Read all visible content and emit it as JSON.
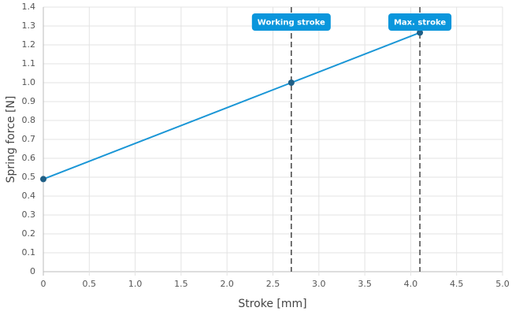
{
  "chart_data": {
    "type": "line",
    "x_label": "Stroke [mm]",
    "y_label": "Spring force [N]",
    "x": [
      0,
      2.7,
      4.1
    ],
    "series": [
      {
        "color": "#1a96d6",
        "point_color": "#1f5f86",
        "values": [
          0.49,
          1.0,
          1.265
        ]
      }
    ],
    "xlim": [
      0,
      5
    ],
    "xticks": [
      0,
      0.5,
      {
        "value": 1,
        "label": "1.0"
      },
      1.5,
      {
        "value": 2,
        "label": "2.0"
      },
      2.5,
      {
        "value": 3,
        "label": "3.0"
      },
      3.5,
      {
        "value": 4,
        "label": "4.0"
      },
      4.5,
      {
        "value": 5,
        "label": "5.0"
      }
    ],
    "ylim": [
      0,
      1.4
    ],
    "yticks": [
      0,
      0.1,
      0.2,
      0.3,
      0.4,
      0.5,
      0.6,
      0.7,
      0.8,
      0.9,
      {
        "value": 1,
        "label": "1.0"
      },
      1.1,
      1.2,
      1.3,
      1.4
    ],
    "grid": true,
    "annotations": [
      {
        "x": 2.7,
        "label": "Working stroke"
      },
      {
        "x": 4.1,
        "label": "Max. stroke"
      }
    ],
    "annotation_color": "#0a96dc"
  }
}
